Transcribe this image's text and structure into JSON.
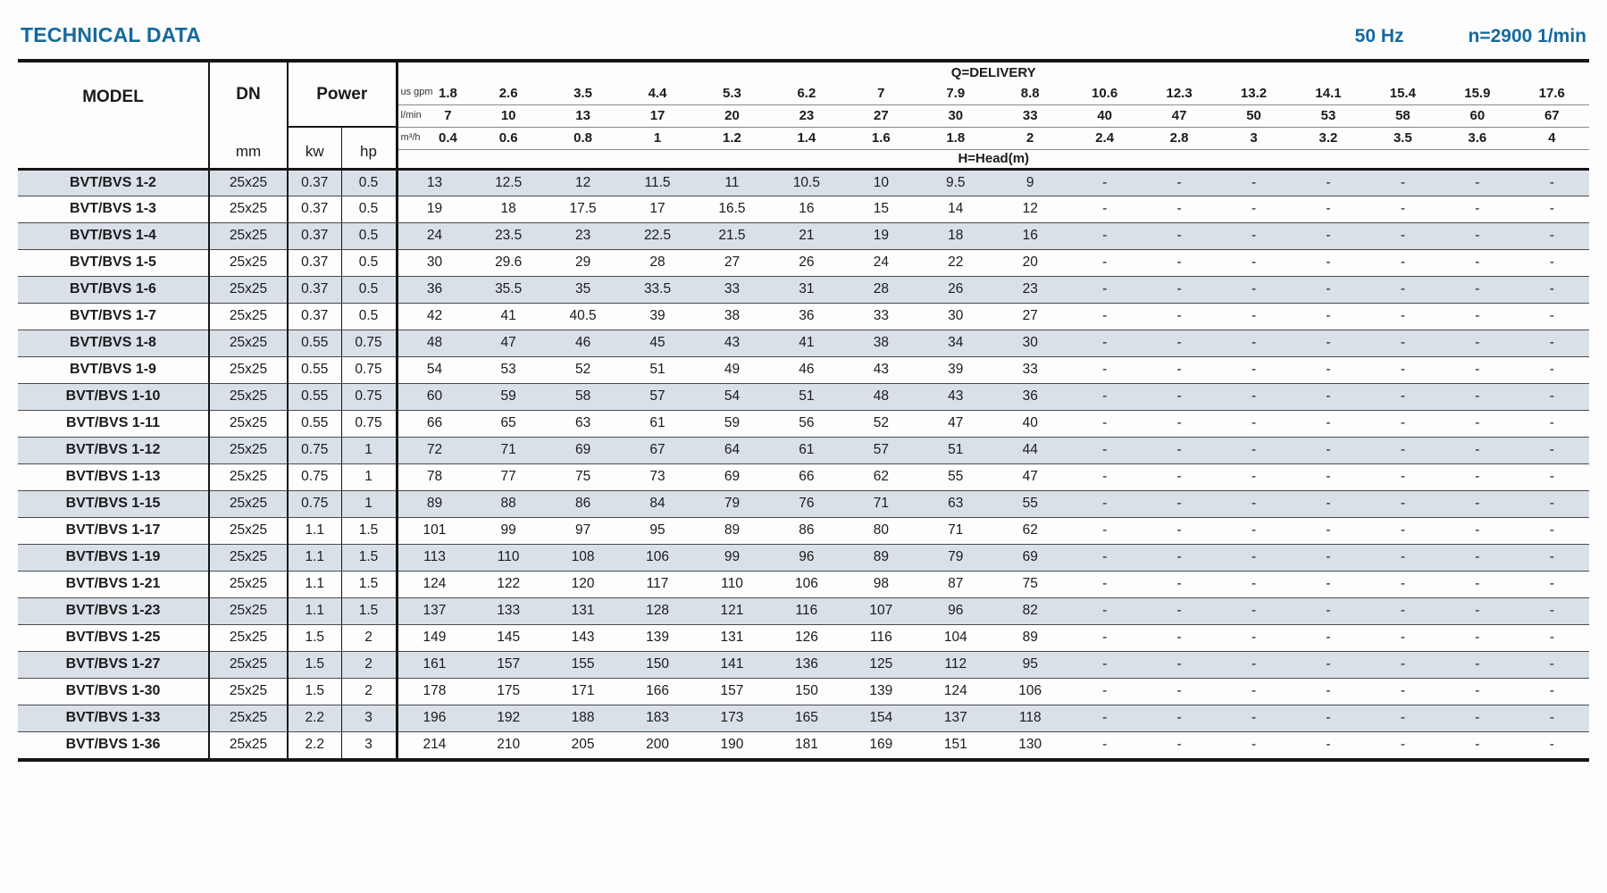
{
  "header": {
    "title": "TECHNICAL DATA",
    "frequency": "50 Hz",
    "speed": "n=2900 1/min"
  },
  "colors": {
    "accent_blue": "#16699e",
    "row_shade": "#d9e0e8"
  },
  "table": {
    "model_header": "MODEL",
    "dn_header": "DN",
    "dn_unit": "mm",
    "power_header": "Power",
    "power_units": {
      "kw": "kw",
      "hp": "hp"
    },
    "delivery_header": "Q=DELIVERY",
    "head_header": "H=Head(m)",
    "flow_units": [
      {
        "label": "us gpm",
        "values": [
          "1.8",
          "2.6",
          "3.5",
          "4.4",
          "5.3",
          "6.2",
          "7",
          "7.9",
          "8.8",
          "10.6",
          "12.3",
          "13.2",
          "14.1",
          "15.4",
          "15.9",
          "17.6"
        ]
      },
      {
        "label": "l/min",
        "values": [
          "7",
          "10",
          "13",
          "17",
          "20",
          "23",
          "27",
          "30",
          "33",
          "40",
          "47",
          "50",
          "53",
          "58",
          "60",
          "67"
        ]
      },
      {
        "label": "m³/h",
        "values": [
          "0.4",
          "0.6",
          "0.8",
          "1",
          "1.2",
          "1.4",
          "1.6",
          "1.8",
          "2",
          "2.4",
          "2.8",
          "3",
          "3.2",
          "3.5",
          "3.6",
          "4"
        ]
      }
    ],
    "rows": [
      {
        "model": "BVT/BVS 1-2",
        "dn": "25x25",
        "kw": "0.37",
        "hp": "0.5",
        "head": [
          "13",
          "12.5",
          "12",
          "11.5",
          "11",
          "10.5",
          "10",
          "9.5",
          "9",
          "-",
          "-",
          "-",
          "-",
          "-",
          "-",
          "-"
        ]
      },
      {
        "model": "BVT/BVS 1-3",
        "dn": "25x25",
        "kw": "0.37",
        "hp": "0.5",
        "head": [
          "19",
          "18",
          "17.5",
          "17",
          "16.5",
          "16",
          "15",
          "14",
          "12",
          "-",
          "-",
          "-",
          "-",
          "-",
          "-",
          "-"
        ]
      },
      {
        "model": "BVT/BVS 1-4",
        "dn": "25x25",
        "kw": "0.37",
        "hp": "0.5",
        "head": [
          "24",
          "23.5",
          "23",
          "22.5",
          "21.5",
          "21",
          "19",
          "18",
          "16",
          "-",
          "-",
          "-",
          "-",
          "-",
          "-",
          "-"
        ]
      },
      {
        "model": "BVT/BVS 1-5",
        "dn": "25x25",
        "kw": "0.37",
        "hp": "0.5",
        "head": [
          "30",
          "29.6",
          "29",
          "28",
          "27",
          "26",
          "24",
          "22",
          "20",
          "-",
          "-",
          "-",
          "-",
          "-",
          "-",
          "-"
        ]
      },
      {
        "model": "BVT/BVS 1-6",
        "dn": "25x25",
        "kw": "0.37",
        "hp": "0.5",
        "head": [
          "36",
          "35.5",
          "35",
          "33.5",
          "33",
          "31",
          "28",
          "26",
          "23",
          "-",
          "-",
          "-",
          "-",
          "-",
          "-",
          "-"
        ]
      },
      {
        "model": "BVT/BVS 1-7",
        "dn": "25x25",
        "kw": "0.37",
        "hp": "0.5",
        "head": [
          "42",
          "41",
          "40.5",
          "39",
          "38",
          "36",
          "33",
          "30",
          "27",
          "-",
          "-",
          "-",
          "-",
          "-",
          "-",
          "-"
        ]
      },
      {
        "model": "BVT/BVS 1-8",
        "dn": "25x25",
        "kw": "0.55",
        "hp": "0.75",
        "head": [
          "48",
          "47",
          "46",
          "45",
          "43",
          "41",
          "38",
          "34",
          "30",
          "-",
          "-",
          "-",
          "-",
          "-",
          "-",
          "-"
        ]
      },
      {
        "model": "BVT/BVS 1-9",
        "dn": "25x25",
        "kw": "0.55",
        "hp": "0.75",
        "head": [
          "54",
          "53",
          "52",
          "51",
          "49",
          "46",
          "43",
          "39",
          "33",
          "-",
          "-",
          "-",
          "-",
          "-",
          "-",
          "-"
        ]
      },
      {
        "model": "BVT/BVS 1-10",
        "dn": "25x25",
        "kw": "0.55",
        "hp": "0.75",
        "head": [
          "60",
          "59",
          "58",
          "57",
          "54",
          "51",
          "48",
          "43",
          "36",
          "-",
          "-",
          "-",
          "-",
          "-",
          "-",
          "-"
        ]
      },
      {
        "model": "BVT/BVS 1-11",
        "dn": "25x25",
        "kw": "0.55",
        "hp": "0.75",
        "head": [
          "66",
          "65",
          "63",
          "61",
          "59",
          "56",
          "52",
          "47",
          "40",
          "-",
          "-",
          "-",
          "-",
          "-",
          "-",
          "-"
        ]
      },
      {
        "model": "BVT/BVS 1-12",
        "dn": "25x25",
        "kw": "0.75",
        "hp": "1",
        "head": [
          "72",
          "71",
          "69",
          "67",
          "64",
          "61",
          "57",
          "51",
          "44",
          "-",
          "-",
          "-",
          "-",
          "-",
          "-",
          "-"
        ]
      },
      {
        "model": "BVT/BVS 1-13",
        "dn": "25x25",
        "kw": "0.75",
        "hp": "1",
        "head": [
          "78",
          "77",
          "75",
          "73",
          "69",
          "66",
          "62",
          "55",
          "47",
          "-",
          "-",
          "-",
          "-",
          "-",
          "-",
          "-"
        ]
      },
      {
        "model": "BVT/BVS 1-15",
        "dn": "25x25",
        "kw": "0.75",
        "hp": "1",
        "head": [
          "89",
          "88",
          "86",
          "84",
          "79",
          "76",
          "71",
          "63",
          "55",
          "-",
          "-",
          "-",
          "-",
          "-",
          "-",
          "-"
        ]
      },
      {
        "model": "BVT/BVS 1-17",
        "dn": "25x25",
        "kw": "1.1",
        "hp": "1.5",
        "head": [
          "101",
          "99",
          "97",
          "95",
          "89",
          "86",
          "80",
          "71",
          "62",
          "-",
          "-",
          "-",
          "-",
          "-",
          "-",
          "-"
        ]
      },
      {
        "model": "BVT/BVS 1-19",
        "dn": "25x25",
        "kw": "1.1",
        "hp": "1.5",
        "head": [
          "113",
          "110",
          "108",
          "106",
          "99",
          "96",
          "89",
          "79",
          "69",
          "-",
          "-",
          "-",
          "-",
          "-",
          "-",
          "-"
        ]
      },
      {
        "model": "BVT/BVS 1-21",
        "dn": "25x25",
        "kw": "1.1",
        "hp": "1.5",
        "head": [
          "124",
          "122",
          "120",
          "117",
          "110",
          "106",
          "98",
          "87",
          "75",
          "-",
          "-",
          "-",
          "-",
          "-",
          "-",
          "-"
        ]
      },
      {
        "model": "BVT/BVS 1-23",
        "dn": "25x25",
        "kw": "1.1",
        "hp": "1.5",
        "head": [
          "137",
          "133",
          "131",
          "128",
          "121",
          "116",
          "107",
          "96",
          "82",
          "-",
          "-",
          "-",
          "-",
          "-",
          "-",
          "-"
        ]
      },
      {
        "model": "BVT/BVS 1-25",
        "dn": "25x25",
        "kw": "1.5",
        "hp": "2",
        "head": [
          "149",
          "145",
          "143",
          "139",
          "131",
          "126",
          "116",
          "104",
          "89",
          "-",
          "-",
          "-",
          "-",
          "-",
          "-",
          "-"
        ]
      },
      {
        "model": "BVT/BVS 1-27",
        "dn": "25x25",
        "kw": "1.5",
        "hp": "2",
        "head": [
          "161",
          "157",
          "155",
          "150",
          "141",
          "136",
          "125",
          "112",
          "95",
          "-",
          "-",
          "-",
          "-",
          "-",
          "-",
          "-"
        ]
      },
      {
        "model": "BVT/BVS 1-30",
        "dn": "25x25",
        "kw": "1.5",
        "hp": "2",
        "head": [
          "178",
          "175",
          "171",
          "166",
          "157",
          "150",
          "139",
          "124",
          "106",
          "-",
          "-",
          "-",
          "-",
          "-",
          "-",
          "-"
        ]
      },
      {
        "model": "BVT/BVS 1-33",
        "dn": "25x25",
        "kw": "2.2",
        "hp": "3",
        "head": [
          "196",
          "192",
          "188",
          "183",
          "173",
          "165",
          "154",
          "137",
          "118",
          "-",
          "-",
          "-",
          "-",
          "-",
          "-",
          "-"
        ]
      },
      {
        "model": "BVT/BVS 1-36",
        "dn": "25x25",
        "kw": "2.2",
        "hp": "3",
        "head": [
          "214",
          "210",
          "205",
          "200",
          "190",
          "181",
          "169",
          "151",
          "130",
          "-",
          "-",
          "-",
          "-",
          "-",
          "-",
          "-"
        ]
      }
    ]
  }
}
